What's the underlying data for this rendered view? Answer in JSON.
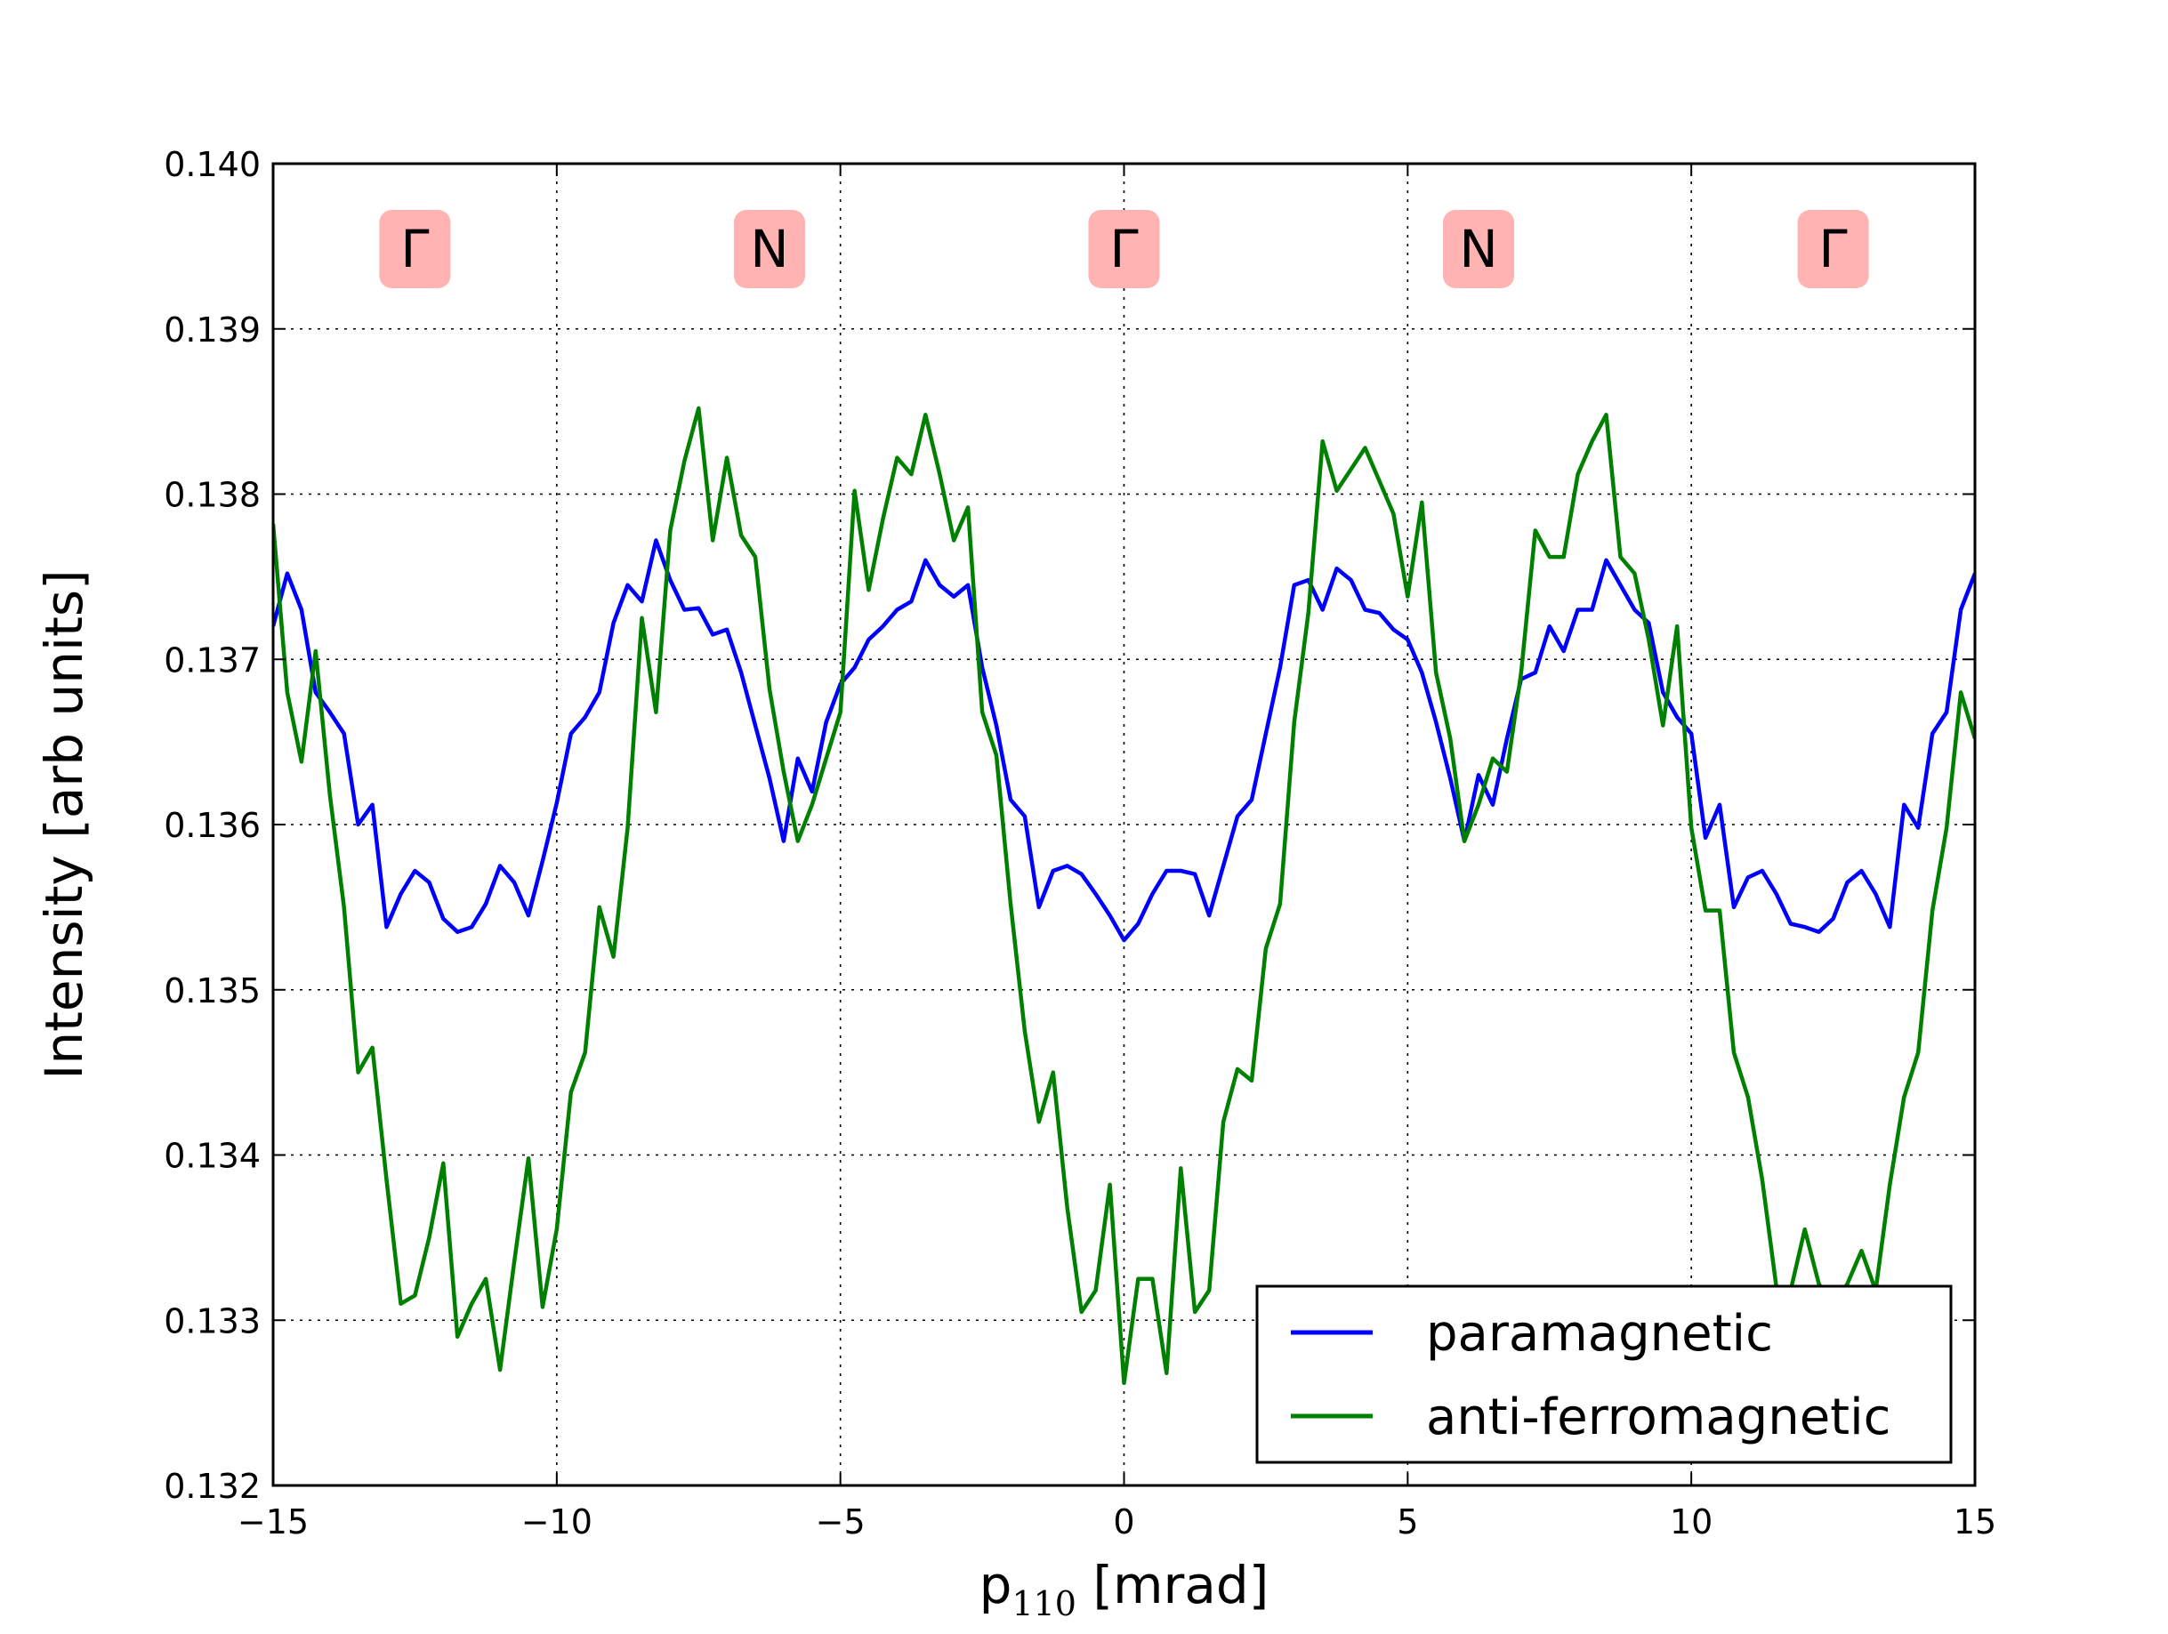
{
  "chart_data": {
    "type": "line",
    "xlabel_main": "p",
    "xlabel_sub": "110",
    "xlabel_unit": "[mrad]",
    "ylabel": "Intensity [arb units]",
    "xlim": [
      -15,
      15
    ],
    "ylim": [
      0.132,
      0.14
    ],
    "xticks": [
      -15,
      -10,
      -5,
      0,
      5,
      10,
      15
    ],
    "xtick_labels": [
      "−15",
      "−10",
      "−5",
      "0",
      "5",
      "10",
      "15"
    ],
    "yticks": [
      0.132,
      0.133,
      0.134,
      0.135,
      0.136,
      0.137,
      0.138,
      0.139,
      0.14
    ],
    "ytick_labels": [
      "0.132",
      "0.133",
      "0.134",
      "0.135",
      "0.136",
      "0.137",
      "0.138",
      "0.139",
      "0.140"
    ],
    "grid": true,
    "legend_position": "lower-right",
    "symmetry_points": [
      {
        "label": "Γ",
        "x": -12.5
      },
      {
        "label": "N",
        "x": -6.25
      },
      {
        "label": "Γ",
        "x": 0
      },
      {
        "label": "N",
        "x": 6.25
      },
      {
        "label": "Γ",
        "x": 12.5
      }
    ],
    "series": [
      {
        "name": "paramagnetic",
        "color": "#0000ff",
        "points": [
          [
            -15,
            0.1372
          ],
          [
            -14.75,
            0.13752
          ],
          [
            -14.5,
            0.1373
          ],
          [
            -14.25,
            0.1368
          ],
          [
            -14,
            0.13668
          ],
          [
            -13.75,
            0.13655
          ],
          [
            -13.5,
            0.136
          ],
          [
            -13.25,
            0.13612
          ],
          [
            -13,
            0.13538
          ],
          [
            -12.75,
            0.13558
          ],
          [
            -12.5,
            0.13572
          ],
          [
            -12.25,
            0.13565
          ],
          [
            -12,
            0.13543
          ],
          [
            -11.75,
            0.13535
          ],
          [
            -11.5,
            0.13538
          ],
          [
            -11.25,
            0.13552
          ],
          [
            -11,
            0.13575
          ],
          [
            -10.75,
            0.13565
          ],
          [
            -10.5,
            0.13545
          ],
          [
            -10.25,
            0.13578
          ],
          [
            -10,
            0.13613
          ],
          [
            -9.75,
            0.13655
          ],
          [
            -9.5,
            0.13665
          ],
          [
            -9.25,
            0.1368
          ],
          [
            -9,
            0.13722
          ],
          [
            -8.75,
            0.13745
          ],
          [
            -8.5,
            0.13735
          ],
          [
            -8.25,
            0.13772
          ],
          [
            -8,
            0.13748
          ],
          [
            -7.75,
            0.1373
          ],
          [
            -7.5,
            0.13731
          ],
          [
            -7.25,
            0.13715
          ],
          [
            -7,
            0.13718
          ],
          [
            -6.75,
            0.13692
          ],
          [
            -6.5,
            0.1366
          ],
          [
            -6.25,
            0.13628
          ],
          [
            -6,
            0.1359
          ],
          [
            -5.75,
            0.1364
          ],
          [
            -5.5,
            0.1362
          ],
          [
            -5.25,
            0.13662
          ],
          [
            -5,
            0.13685
          ],
          [
            -4.75,
            0.13695
          ],
          [
            -4.5,
            0.13712
          ],
          [
            -4.25,
            0.1372
          ],
          [
            -4,
            0.1373
          ],
          [
            -3.75,
            0.13735
          ],
          [
            -3.5,
            0.1376
          ],
          [
            -3.25,
            0.13745
          ],
          [
            -3,
            0.13738
          ],
          [
            -2.75,
            0.13745
          ],
          [
            -2.5,
            0.13695
          ],
          [
            -2.25,
            0.1366
          ],
          [
            -2,
            0.13615
          ],
          [
            -1.75,
            0.13605
          ],
          [
            -1.5,
            0.1355
          ],
          [
            -1.25,
            0.13572
          ],
          [
            -1,
            0.13575
          ],
          [
            -0.75,
            0.1357
          ],
          [
            -0.5,
            0.13558
          ],
          [
            -0.25,
            0.13545
          ],
          [
            0,
            0.1353
          ],
          [
            0.25,
            0.1354
          ],
          [
            0.5,
            0.13558
          ],
          [
            0.75,
            0.13572
          ],
          [
            1,
            0.13572
          ],
          [
            1.25,
            0.1357
          ],
          [
            1.5,
            0.13545
          ],
          [
            1.75,
            0.13575
          ],
          [
            2,
            0.13605
          ],
          [
            2.25,
            0.13615
          ],
          [
            2.5,
            0.13655
          ],
          [
            2.75,
            0.13695
          ],
          [
            3,
            0.13745
          ],
          [
            3.25,
            0.13748
          ],
          [
            3.5,
            0.1373
          ],
          [
            3.75,
            0.13755
          ],
          [
            4,
            0.13748
          ],
          [
            4.25,
            0.1373
          ],
          [
            4.5,
            0.13728
          ],
          [
            4.75,
            0.13718
          ],
          [
            5,
            0.13712
          ],
          [
            5.25,
            0.13692
          ],
          [
            5.5,
            0.13662
          ],
          [
            5.75,
            0.13628
          ],
          [
            6,
            0.1359
          ],
          [
            6.25,
            0.1363
          ],
          [
            6.5,
            0.13612
          ],
          [
            6.75,
            0.13652
          ],
          [
            7,
            0.13688
          ],
          [
            7.25,
            0.13692
          ],
          [
            7.5,
            0.1372
          ],
          [
            7.75,
            0.13705
          ],
          [
            8,
            0.1373
          ],
          [
            8.25,
            0.1373
          ],
          [
            8.5,
            0.1376
          ],
          [
            8.75,
            0.13745
          ],
          [
            9,
            0.1373
          ],
          [
            9.25,
            0.13722
          ],
          [
            9.5,
            0.1368
          ],
          [
            9.75,
            0.13665
          ],
          [
            10,
            0.13655
          ],
          [
            10.25,
            0.13592
          ],
          [
            10.5,
            0.13612
          ],
          [
            10.75,
            0.1355
          ],
          [
            11,
            0.13568
          ],
          [
            11.25,
            0.13572
          ],
          [
            11.5,
            0.13558
          ],
          [
            11.75,
            0.1354
          ],
          [
            12,
            0.13538
          ],
          [
            12.25,
            0.13535
          ],
          [
            12.5,
            0.13543
          ],
          [
            12.75,
            0.13565
          ],
          [
            13,
            0.13572
          ],
          [
            13.25,
            0.13558
          ],
          [
            13.5,
            0.13538
          ],
          [
            13.75,
            0.13612
          ],
          [
            14,
            0.13598
          ],
          [
            14.25,
            0.13655
          ],
          [
            14.5,
            0.13668
          ],
          [
            14.75,
            0.1373
          ],
          [
            15,
            0.13752
          ]
        ]
      },
      {
        "name": "anti-ferromagnetic",
        "color": "#008000",
        "points": [
          [
            -15,
            0.13782
          ],
          [
            -14.75,
            0.1368
          ],
          [
            -14.5,
            0.13638
          ],
          [
            -14.25,
            0.13705
          ],
          [
            -14,
            0.13618
          ],
          [
            -13.75,
            0.1355
          ],
          [
            -13.5,
            0.1345
          ],
          [
            -13.25,
            0.13465
          ],
          [
            -13,
            0.13385
          ],
          [
            -12.75,
            0.1331
          ],
          [
            -12.5,
            0.13315
          ],
          [
            -12.25,
            0.1335
          ],
          [
            -12,
            0.13395
          ],
          [
            -11.75,
            0.1329
          ],
          [
            -11.5,
            0.1331
          ],
          [
            -11.25,
            0.13325
          ],
          [
            -11,
            0.1327
          ],
          [
            -10.75,
            0.13335
          ],
          [
            -10.5,
            0.13398
          ],
          [
            -10.25,
            0.13308
          ],
          [
            -10,
            0.13355
          ],
          [
            -9.75,
            0.13438
          ],
          [
            -9.5,
            0.13462
          ],
          [
            -9.25,
            0.1355
          ],
          [
            -9,
            0.1352
          ],
          [
            -8.75,
            0.13598
          ],
          [
            -8.5,
            0.13725
          ],
          [
            -8.25,
            0.13668
          ],
          [
            -8,
            0.13778
          ],
          [
            -7.75,
            0.1382
          ],
          [
            -7.5,
            0.13852
          ],
          [
            -7.25,
            0.13772
          ],
          [
            -7,
            0.13822
          ],
          [
            -6.75,
            0.13775
          ],
          [
            -6.5,
            0.13762
          ],
          [
            -6.25,
            0.13682
          ],
          [
            -6,
            0.13632
          ],
          [
            -5.75,
            0.1359
          ],
          [
            -5.5,
            0.13612
          ],
          [
            -5.25,
            0.1364
          ],
          [
            -5,
            0.13668
          ],
          [
            -4.75,
            0.13802
          ],
          [
            -4.5,
            0.13742
          ],
          [
            -4.25,
            0.13785
          ],
          [
            -4,
            0.13822
          ],
          [
            -3.75,
            0.13812
          ],
          [
            -3.5,
            0.13848
          ],
          [
            -3.25,
            0.13812
          ],
          [
            -3,
            0.13772
          ],
          [
            -2.75,
            0.13792
          ],
          [
            -2.5,
            0.13668
          ],
          [
            -2.25,
            0.13642
          ],
          [
            -2,
            0.13552
          ],
          [
            -1.75,
            0.13475
          ],
          [
            -1.5,
            0.1342
          ],
          [
            -1.25,
            0.1345
          ],
          [
            -1,
            0.13368
          ],
          [
            -0.75,
            0.13305
          ],
          [
            -0.5,
            0.13318
          ],
          [
            -0.25,
            0.13382
          ],
          [
            0,
            0.13262
          ],
          [
            0.25,
            0.13325
          ],
          [
            0.5,
            0.13325
          ],
          [
            0.75,
            0.13268
          ],
          [
            1,
            0.13392
          ],
          [
            1.25,
            0.13305
          ],
          [
            1.5,
            0.13318
          ],
          [
            1.75,
            0.1342
          ],
          [
            2,
            0.13452
          ],
          [
            2.25,
            0.13445
          ],
          [
            2.5,
            0.13525
          ],
          [
            2.75,
            0.13552
          ],
          [
            3,
            0.13662
          ],
          [
            3.25,
            0.13728
          ],
          [
            3.5,
            0.13832
          ],
          [
            3.75,
            0.13802
          ],
          [
            4,
            0.13815
          ],
          [
            4.25,
            0.13828
          ],
          [
            4.5,
            0.13808
          ],
          [
            4.75,
            0.13788
          ],
          [
            5,
            0.13738
          ],
          [
            5.25,
            0.13795
          ],
          [
            5.5,
            0.13692
          ],
          [
            5.75,
            0.13652
          ],
          [
            6,
            0.1359
          ],
          [
            6.25,
            0.13612
          ],
          [
            6.5,
            0.1364
          ],
          [
            6.75,
            0.13632
          ],
          [
            7,
            0.13692
          ],
          [
            7.25,
            0.13778
          ],
          [
            7.5,
            0.13762
          ],
          [
            7.75,
            0.13762
          ],
          [
            8,
            0.13812
          ],
          [
            8.25,
            0.13832
          ],
          [
            8.5,
            0.13848
          ],
          [
            8.75,
            0.13762
          ],
          [
            9,
            0.13752
          ],
          [
            9.25,
            0.13712
          ],
          [
            9.5,
            0.1366
          ],
          [
            9.75,
            0.1372
          ],
          [
            10,
            0.13598
          ],
          [
            10.25,
            0.13548
          ],
          [
            10.5,
            0.13548
          ],
          [
            10.75,
            0.13462
          ],
          [
            11,
            0.13435
          ],
          [
            11.25,
            0.13385
          ],
          [
            11.5,
            0.1332
          ],
          [
            11.75,
            0.13318
          ],
          [
            12,
            0.13355
          ],
          [
            12.25,
            0.13322
          ],
          [
            12.5,
            0.13308
          ],
          [
            12.75,
            0.13322
          ],
          [
            13,
            0.13342
          ],
          [
            13.25,
            0.13318
          ],
          [
            13.5,
            0.13382
          ],
          [
            13.75,
            0.13435
          ],
          [
            14,
            0.13462
          ],
          [
            14.25,
            0.13548
          ],
          [
            14.5,
            0.13598
          ],
          [
            14.75,
            0.1368
          ],
          [
            15,
            0.13652
          ]
        ]
      }
    ]
  }
}
